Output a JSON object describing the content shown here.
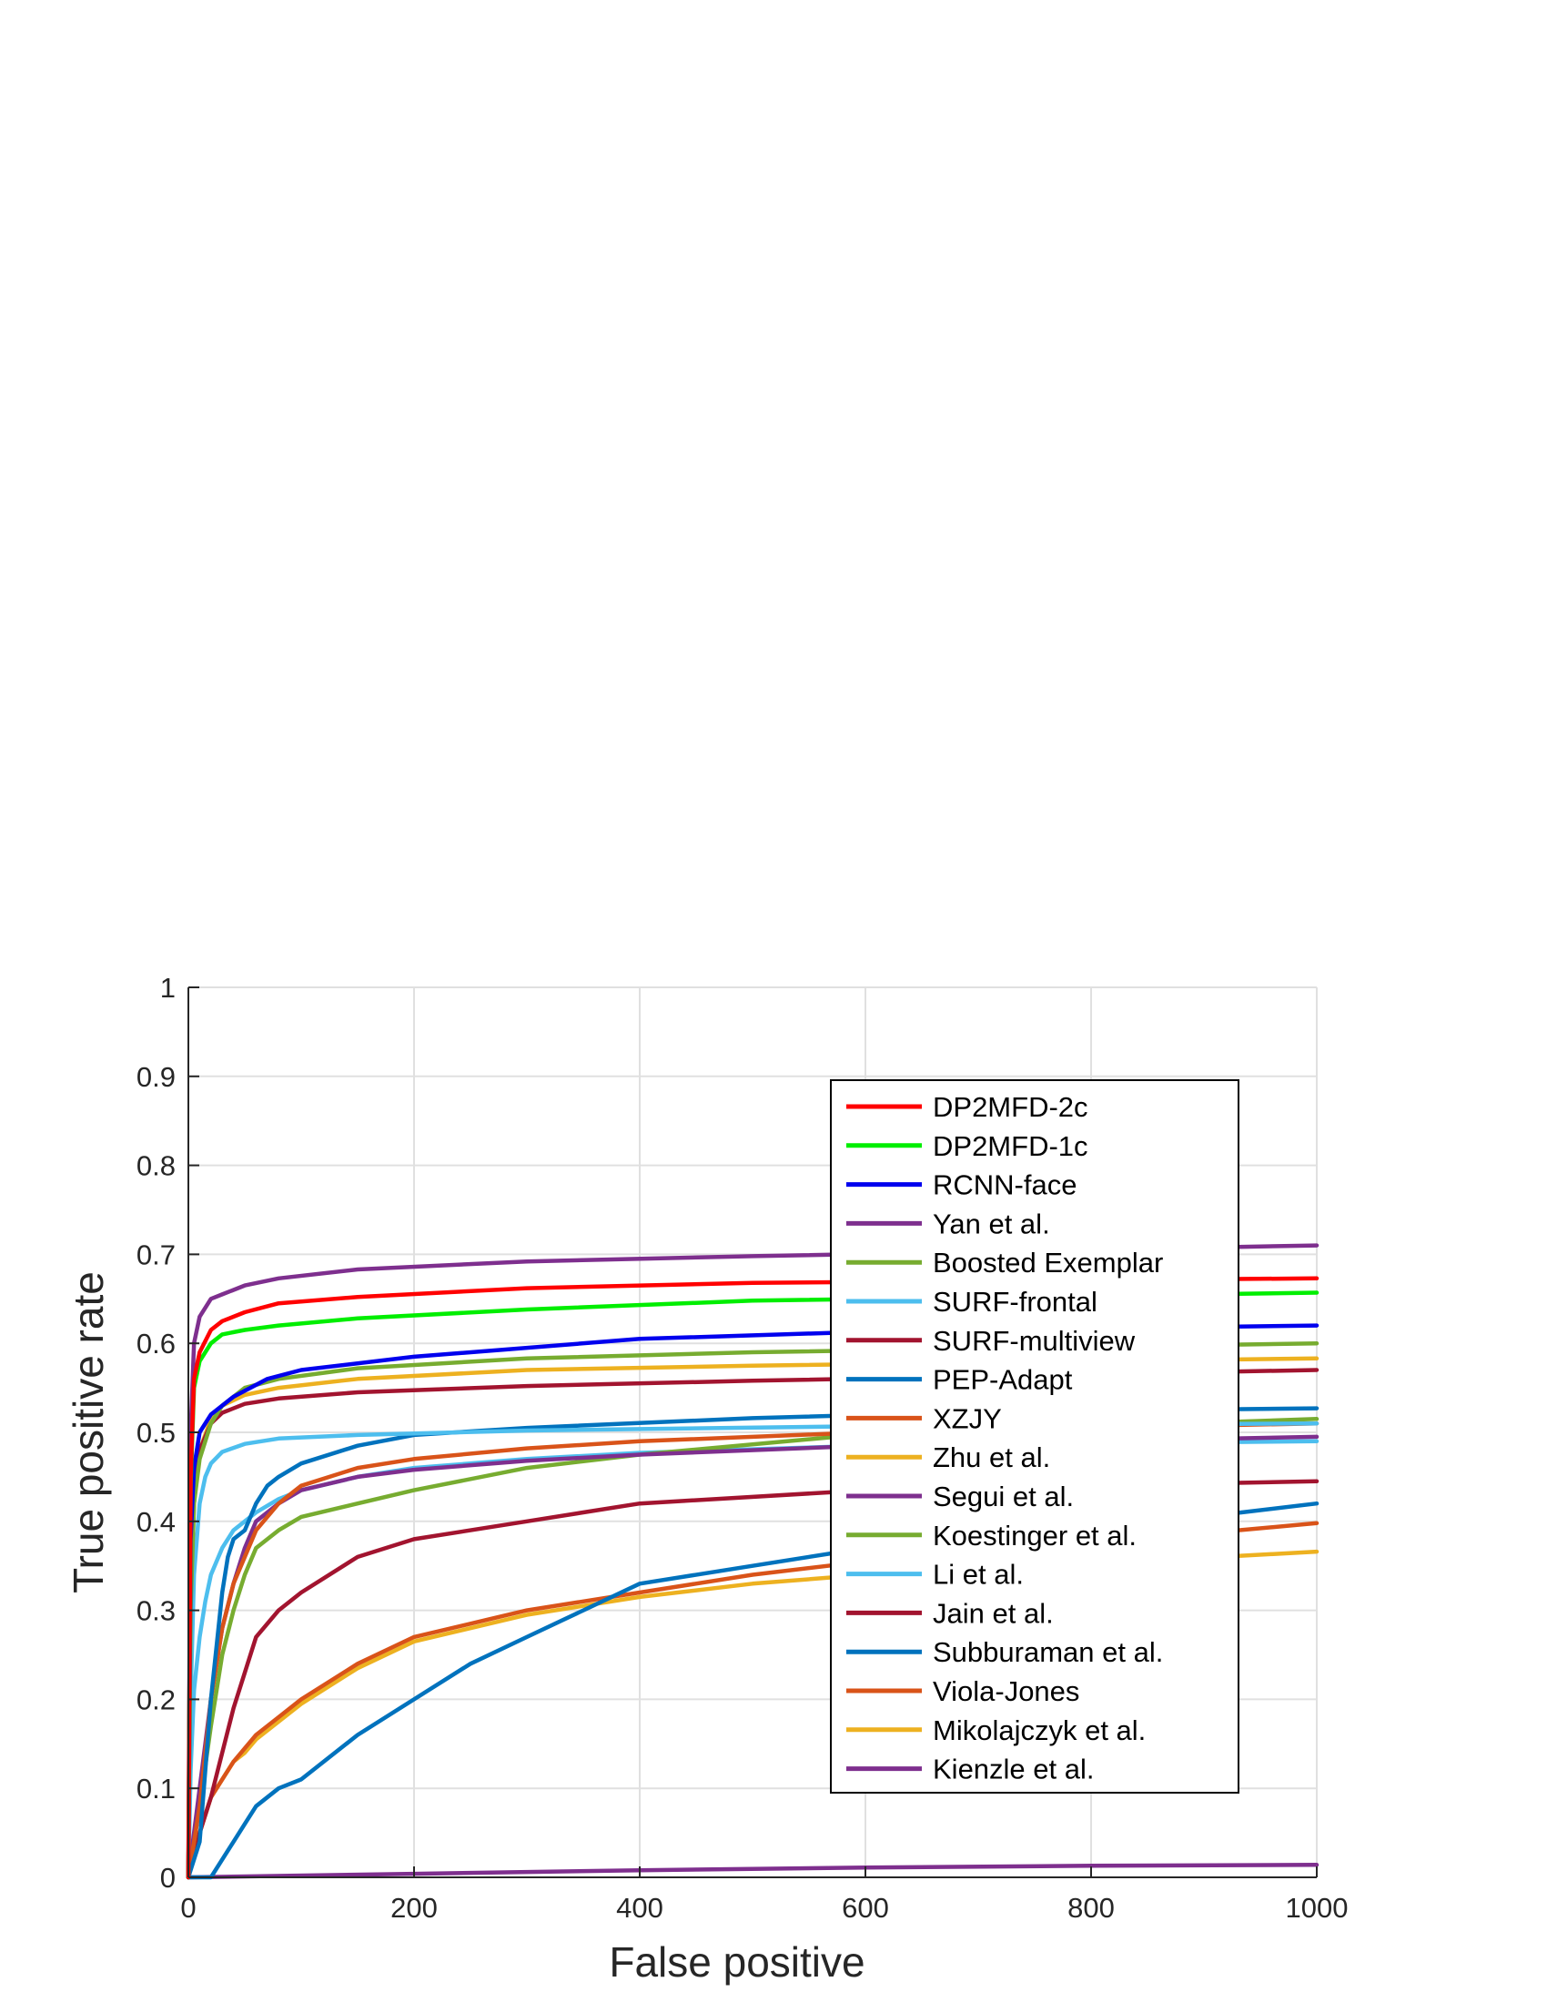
{
  "chart_data": {
    "type": "line",
    "title": "",
    "xlabel": "False positive",
    "ylabel": "True positive rate",
    "xlim": [
      0,
      1000
    ],
    "ylim": [
      0,
      1
    ],
    "grid": true,
    "legend_position": "right",
    "x_ticks": [
      "0",
      "200",
      "400",
      "600",
      "800",
      "1000"
    ],
    "y_ticks": [
      "0",
      "0.1",
      "0.2",
      "0.3",
      "0.4",
      "0.5",
      "0.6",
      "0.7",
      "0.8",
      "0.9",
      "1"
    ],
    "series": [
      {
        "name": "DP2MFD-2c",
        "color": "#ff0000",
        "x": [
          0,
          2,
          5,
          10,
          20,
          30,
          50,
          80,
          150,
          300,
          500,
          1000
        ],
        "y": [
          0.0,
          0.45,
          0.56,
          0.59,
          0.615,
          0.625,
          0.635,
          0.645,
          0.652,
          0.662,
          0.668,
          0.673
        ]
      },
      {
        "name": "DP2MFD-1c",
        "color": "#00ee00",
        "x": [
          0,
          2,
          5,
          10,
          20,
          30,
          50,
          80,
          150,
          300,
          500,
          1000
        ],
        "y": [
          0.0,
          0.44,
          0.55,
          0.58,
          0.6,
          0.61,
          0.615,
          0.62,
          0.628,
          0.638,
          0.648,
          0.657
        ]
      },
      {
        "name": "RCNN-face",
        "color": "#0000ee",
        "x": [
          0,
          2,
          5,
          10,
          20,
          40,
          70,
          100,
          200,
          400,
          600,
          1000
        ],
        "y": [
          0.0,
          0.38,
          0.46,
          0.5,
          0.52,
          0.54,
          0.56,
          0.57,
          0.585,
          0.605,
          0.613,
          0.62
        ]
      },
      {
        "name": "Yan et al.",
        "color": "#7e2f8e",
        "x": [
          0,
          2,
          5,
          10,
          20,
          30,
          50,
          80,
          150,
          300,
          500,
          1000
        ],
        "y": [
          0.0,
          0.5,
          0.6,
          0.63,
          0.65,
          0.655,
          0.665,
          0.673,
          0.683,
          0.692,
          0.698,
          0.71
        ]
      },
      {
        "name": "Boosted Exemplar",
        "color": "#77ac30",
        "x": [
          0,
          2,
          5,
          10,
          20,
          30,
          50,
          80,
          150,
          300,
          500,
          1000
        ],
        "y": [
          0.0,
          0.3,
          0.42,
          0.47,
          0.51,
          0.53,
          0.55,
          0.56,
          0.572,
          0.583,
          0.59,
          0.6
        ]
      },
      {
        "name": "SURF-frontal",
        "color": "#4dbeee",
        "x": [
          0,
          2,
          5,
          10,
          15,
          20,
          30,
          50,
          80,
          150,
          300,
          600,
          1000
        ],
        "y": [
          0.0,
          0.2,
          0.34,
          0.42,
          0.45,
          0.465,
          0.478,
          0.487,
          0.493,
          0.497,
          0.502,
          0.507,
          0.51
        ]
      },
      {
        "name": "SURF-multiview",
        "color": "#a2142f",
        "x": [
          0,
          2,
          5,
          10,
          20,
          30,
          50,
          80,
          150,
          300,
          500,
          1000
        ],
        "y": [
          0.0,
          0.3,
          0.43,
          0.48,
          0.51,
          0.522,
          0.532,
          0.538,
          0.545,
          0.552,
          0.558,
          0.57
        ]
      },
      {
        "name": "PEP-Adapt",
        "color": "#0072bd",
        "x": [
          0,
          10,
          20,
          25,
          30,
          35,
          40,
          50,
          60,
          70,
          80,
          100,
          150,
          200,
          300,
          500,
          700,
          1000
        ],
        "y": [
          0.0,
          0.04,
          0.2,
          0.26,
          0.32,
          0.36,
          0.38,
          0.39,
          0.42,
          0.44,
          0.45,
          0.465,
          0.485,
          0.497,
          0.505,
          0.516,
          0.523,
          0.527
        ]
      },
      {
        "name": "XZJY",
        "color": "#d95319",
        "x": [
          0,
          10,
          20,
          30,
          40,
          50,
          60,
          80,
          100,
          150,
          200,
          300,
          400,
          600,
          1000
        ],
        "y": [
          0.0,
          0.08,
          0.2,
          0.28,
          0.33,
          0.36,
          0.39,
          0.42,
          0.44,
          0.46,
          0.47,
          0.482,
          0.49,
          0.5,
          0.51
        ]
      },
      {
        "name": "Zhu et al.",
        "color": "#edb120",
        "x": [
          0,
          2,
          5,
          10,
          20,
          30,
          50,
          80,
          150,
          300,
          500,
          1000
        ],
        "y": [
          0.0,
          0.3,
          0.42,
          0.48,
          0.515,
          0.53,
          0.542,
          0.55,
          0.56,
          0.57,
          0.575,
          0.583
        ]
      },
      {
        "name": "Segui et al.",
        "color": "#7e2f8e",
        "x": [
          0,
          10,
          20,
          30,
          40,
          50,
          60,
          80,
          100,
          150,
          200,
          300,
          400,
          600,
          1000
        ],
        "y": [
          0.0,
          0.1,
          0.2,
          0.28,
          0.33,
          0.37,
          0.4,
          0.42,
          0.435,
          0.45,
          0.458,
          0.468,
          0.475,
          0.485,
          0.495
        ]
      },
      {
        "name": "Koestinger et al.",
        "color": "#77ac30",
        "x": [
          0,
          10,
          20,
          30,
          40,
          50,
          60,
          80,
          100,
          150,
          200,
          300,
          400,
          600,
          1000
        ],
        "y": [
          0.0,
          0.08,
          0.17,
          0.25,
          0.3,
          0.34,
          0.37,
          0.39,
          0.405,
          0.42,
          0.435,
          0.46,
          0.475,
          0.498,
          0.515
        ]
      },
      {
        "name": "Li et al.",
        "color": "#4dbeee",
        "x": [
          0,
          2,
          5,
          10,
          15,
          20,
          30,
          40,
          50,
          60,
          80,
          100,
          150,
          200,
          300,
          400,
          600,
          1000
        ],
        "y": [
          0.0,
          0.12,
          0.21,
          0.27,
          0.31,
          0.34,
          0.37,
          0.39,
          0.4,
          0.41,
          0.425,
          0.435,
          0.45,
          0.46,
          0.47,
          0.477,
          0.485,
          0.49
        ]
      },
      {
        "name": "Jain et al.",
        "color": "#a2142f",
        "x": [
          0,
          10,
          20,
          30,
          40,
          50,
          60,
          80,
          100,
          150,
          200,
          300,
          400,
          600,
          1000
        ],
        "y": [
          0.0,
          0.05,
          0.09,
          0.14,
          0.19,
          0.23,
          0.27,
          0.3,
          0.32,
          0.36,
          0.38,
          0.4,
          0.42,
          0.435,
          0.445
        ]
      },
      {
        "name": "Subburaman et al.",
        "color": "#0072bd",
        "x": [
          0,
          20,
          30,
          40,
          50,
          60,
          80,
          100,
          150,
          200,
          250,
          300,
          350,
          400,
          500,
          600,
          800,
          1000
        ],
        "y": [
          0.0,
          0.0,
          0.02,
          0.04,
          0.06,
          0.08,
          0.1,
          0.11,
          0.16,
          0.2,
          0.24,
          0.27,
          0.3,
          0.33,
          0.35,
          0.37,
          0.39,
          0.42
        ]
      },
      {
        "name": "Viola-Jones",
        "color": "#d95319",
        "x": [
          0,
          5,
          10,
          20,
          30,
          40,
          50,
          60,
          80,
          100,
          150,
          200,
          300,
          400,
          500,
          600,
          800,
          1000
        ],
        "y": [
          0.0,
          0.03,
          0.05,
          0.09,
          0.11,
          0.13,
          0.145,
          0.16,
          0.18,
          0.2,
          0.24,
          0.27,
          0.3,
          0.32,
          0.34,
          0.355,
          0.375,
          0.398
        ]
      },
      {
        "name": "Mikolajczyk et al.",
        "color": "#edb120",
        "x": [
          0,
          5,
          10,
          20,
          30,
          40,
          50,
          60,
          80,
          100,
          150,
          200,
          300,
          400,
          500,
          600,
          800,
          1000
        ],
        "y": [
          0.0,
          0.03,
          0.05,
          0.09,
          0.11,
          0.13,
          0.14,
          0.155,
          0.175,
          0.195,
          0.235,
          0.265,
          0.295,
          0.315,
          0.33,
          0.34,
          0.352,
          0.366
        ]
      },
      {
        "name": "Kienzle et al.",
        "color": "#7e2f8e",
        "x": [
          0,
          200,
          400,
          600,
          800,
          1000
        ],
        "y": [
          0.0,
          0.004,
          0.008,
          0.011,
          0.013,
          0.014
        ]
      }
    ]
  }
}
